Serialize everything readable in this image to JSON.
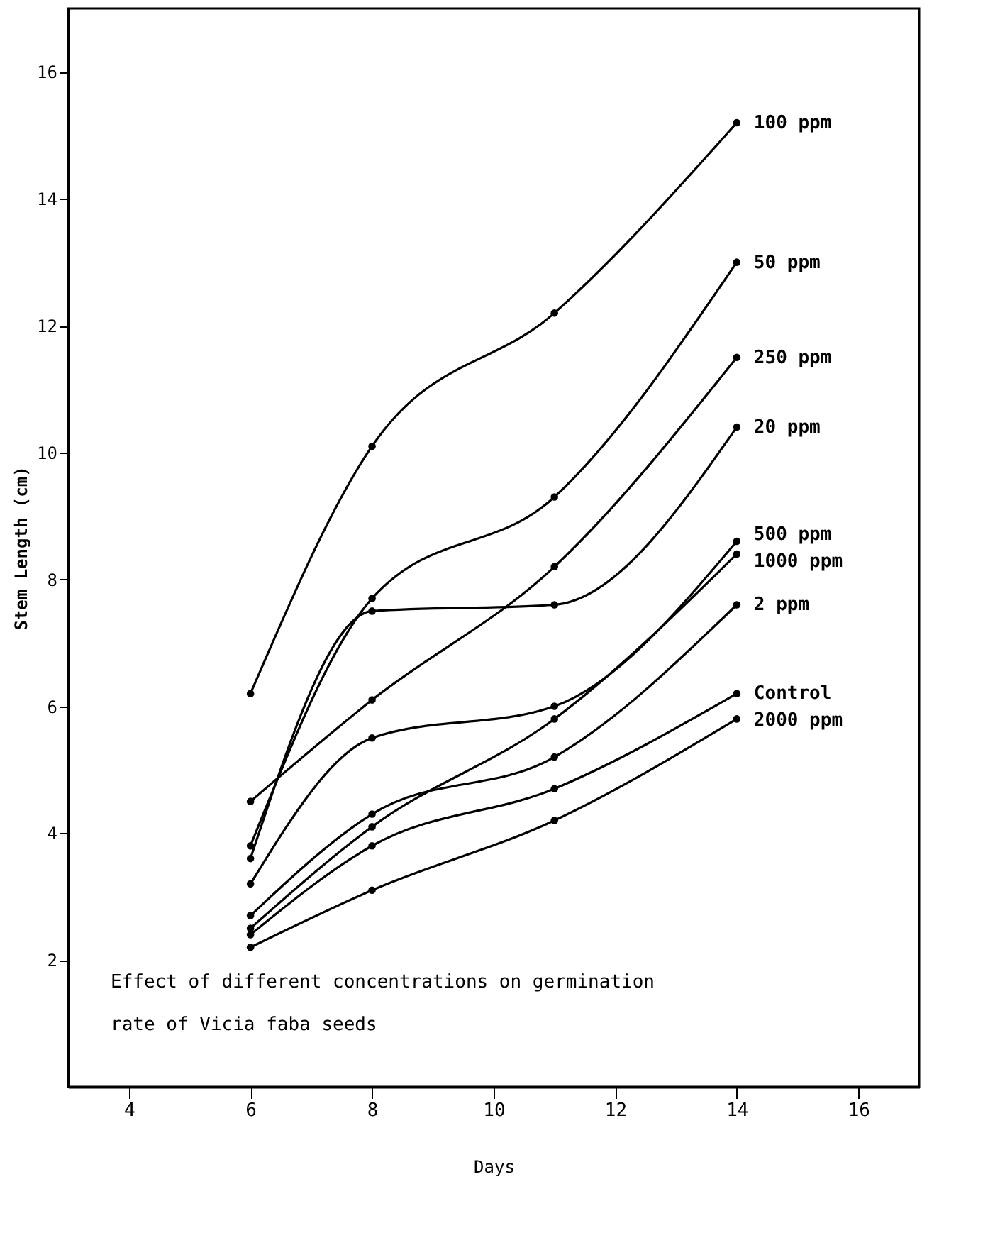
{
  "chart_data": {
    "type": "line",
    "xlabel": "Days",
    "ylabel": "Stem Length (cm)",
    "x": [
      6,
      8,
      11,
      14
    ],
    "series": [
      {
        "name": "100 ppm",
        "color": "#000000",
        "values": [
          6.2,
          10.1,
          12.2,
          15.2
        ]
      },
      {
        "name": "50 ppm",
        "color": "#000000",
        "values": [
          3.8,
          7.7,
          9.3,
          13.0
        ]
      },
      {
        "name": "250 ppm",
        "color": "#000000",
        "values": [
          4.5,
          6.1,
          8.2,
          11.5
        ]
      },
      {
        "name": "20 ppm",
        "color": "#000000",
        "values": [
          3.6,
          7.5,
          7.6,
          10.4
        ]
      },
      {
        "name": "500 ppm",
        "color": "#000000",
        "values": [
          3.2,
          5.5,
          6.0,
          8.6
        ]
      },
      {
        "name": "1000 ppm",
        "color": "#000000",
        "values": [
          2.5,
          4.1,
          5.8,
          8.4
        ]
      },
      {
        "name": "2 ppm",
        "color": "#000000",
        "values": [
          2.7,
          4.3,
          5.2,
          7.6
        ]
      },
      {
        "name": "Control",
        "color": "#000000",
        "values": [
          2.4,
          3.8,
          4.7,
          6.2
        ]
      },
      {
        "name": "2000 ppm",
        "color": "#000000",
        "values": [
          2.2,
          3.1,
          4.2,
          5.8
        ]
      }
    ],
    "xlim": [
      3,
      17
    ],
    "xticks": [
      4,
      6,
      8,
      10,
      12,
      14,
      16
    ],
    "ylim": [
      0,
      17
    ],
    "yticks": [
      2,
      4,
      6,
      8,
      10,
      12,
      14,
      16
    ],
    "grid": false,
    "legend": false,
    "marker": "circle",
    "line_style": "solid",
    "annotations": [
      "Effect of different concentrations on germination rate of Vicia faba seeds"
    ]
  }
}
